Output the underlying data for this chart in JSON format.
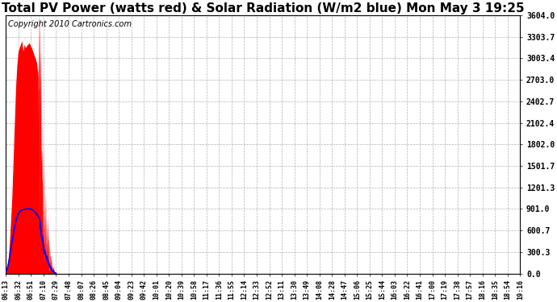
{
  "title": "Total PV Power (watts red) & Solar Radiation (W/m2 blue) Mon May 3 19:25",
  "copyright": "Copyright 2010 Cartronics.com",
  "ymax": 3604.0,
  "yticks": [
    0.0,
    300.3,
    600.7,
    901.0,
    1201.3,
    1501.7,
    1802.0,
    2102.4,
    2402.7,
    2703.0,
    3003.4,
    3303.7,
    3604.0
  ],
  "xtick_labels": [
    "06:13",
    "06:32",
    "06:51",
    "07:10",
    "07:29",
    "07:48",
    "08:07",
    "08:26",
    "08:45",
    "09:04",
    "09:23",
    "09:42",
    "10:01",
    "10:20",
    "10:39",
    "10:58",
    "11:17",
    "11:36",
    "11:55",
    "12:14",
    "12:33",
    "12:52",
    "13:11",
    "13:30",
    "13:49",
    "14:08",
    "14:28",
    "14:47",
    "15:06",
    "15:25",
    "15:44",
    "16:03",
    "16:22",
    "16:41",
    "17:00",
    "17:19",
    "17:38",
    "17:57",
    "18:16",
    "18:35",
    "18:54",
    "19:16"
  ],
  "bg_color": "#ffffff",
  "grid_color": "#aaaaaa",
  "pv_color": "#ff0000",
  "solar_color": "#0000ff",
  "title_fontsize": 11,
  "copyright_fontsize": 7
}
